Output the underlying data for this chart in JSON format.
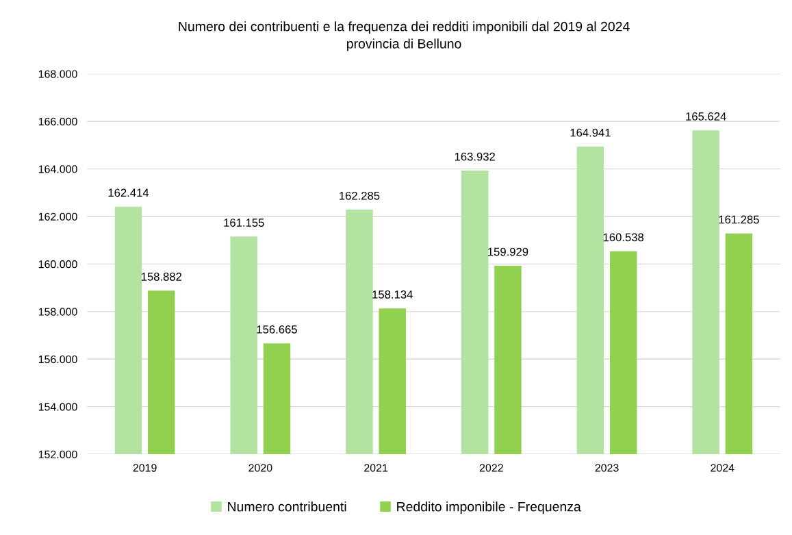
{
  "chart_data": {
    "type": "bar",
    "title": "Numero dei contribuenti e la frequenza dei redditi imponibili dal 2019 al 2024\nprovincia di Belluno",
    "categories": [
      "2019",
      "2020",
      "2021",
      "2022",
      "2023",
      "2024"
    ],
    "series": [
      {
        "name": "Numero contribuenti",
        "color": "#b3e3a0",
        "values": [
          162414,
          161155,
          162285,
          163932,
          164941,
          165624
        ],
        "value_labels": [
          "162.414",
          "161.155",
          "162.285",
          "163.932",
          "164.941",
          "165.624"
        ]
      },
      {
        "name": "Reddito imponibile - Frequenza",
        "color": "#92d050",
        "values": [
          158882,
          156665,
          158134,
          159929,
          160538,
          161285
        ],
        "value_labels": [
          "158.882",
          "156.665",
          "158.134",
          "159.929",
          "160.538",
          "161.285"
        ]
      }
    ],
    "ylim": [
      152000,
      168000
    ],
    "yticks": [
      {
        "value": 152000,
        "label": "152.000"
      },
      {
        "value": 154000,
        "label": "154.000"
      },
      {
        "value": 156000,
        "label": "156.000"
      },
      {
        "value": 158000,
        "label": "158.000"
      },
      {
        "value": 160000,
        "label": "160.000"
      },
      {
        "value": 162000,
        "label": "162.000"
      },
      {
        "value": 164000,
        "label": "164.000"
      },
      {
        "value": 166000,
        "label": "166.000"
      },
      {
        "value": 168000,
        "label": "168.000"
      }
    ],
    "grid": "y",
    "legend": "bottom"
  }
}
